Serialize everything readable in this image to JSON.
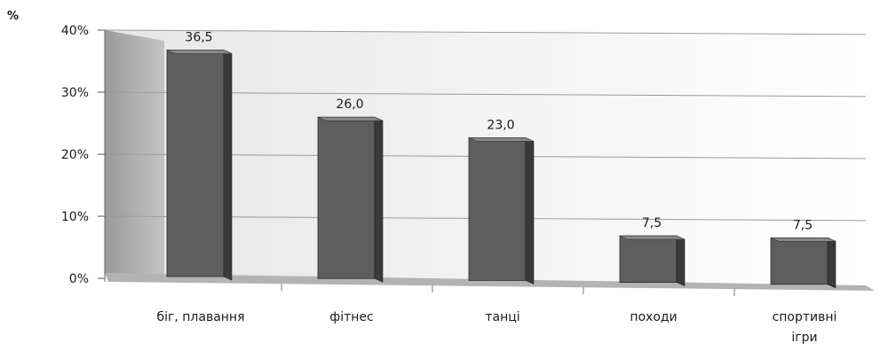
{
  "chart_data": {
    "type": "bar",
    "unit_label": "%",
    "categories": [
      "біг, плавання",
      "фітнес",
      "танці",
      "походи",
      "спортивні ігри"
    ],
    "category_lines": [
      [
        "біг, плавання"
      ],
      [
        "фітнес"
      ],
      [
        "танці"
      ],
      [
        "походи"
      ],
      [
        "спортивні",
        "ігри"
      ]
    ],
    "values": [
      36.5,
      26.0,
      23.0,
      7.5,
      7.5
    ],
    "data_labels": [
      "36,5",
      "26,0",
      "23,0",
      "7,5",
      "7,5"
    ],
    "y_ticks": [
      0,
      10,
      20,
      30,
      40
    ],
    "y_tick_labels": [
      "0%",
      "10%",
      "20%",
      "30%",
      "40%"
    ],
    "ylim": [
      0,
      40
    ],
    "grid": true,
    "legend": "none",
    "style": "3d-column",
    "colors": {
      "bar_front": "#5e5e5e",
      "bar_side": "#3a3a3a",
      "bar_top": "#8a8a8a",
      "wall": "#a6a6a6",
      "floor": "#b3b3b3",
      "grid": "#9a9a9a"
    }
  }
}
